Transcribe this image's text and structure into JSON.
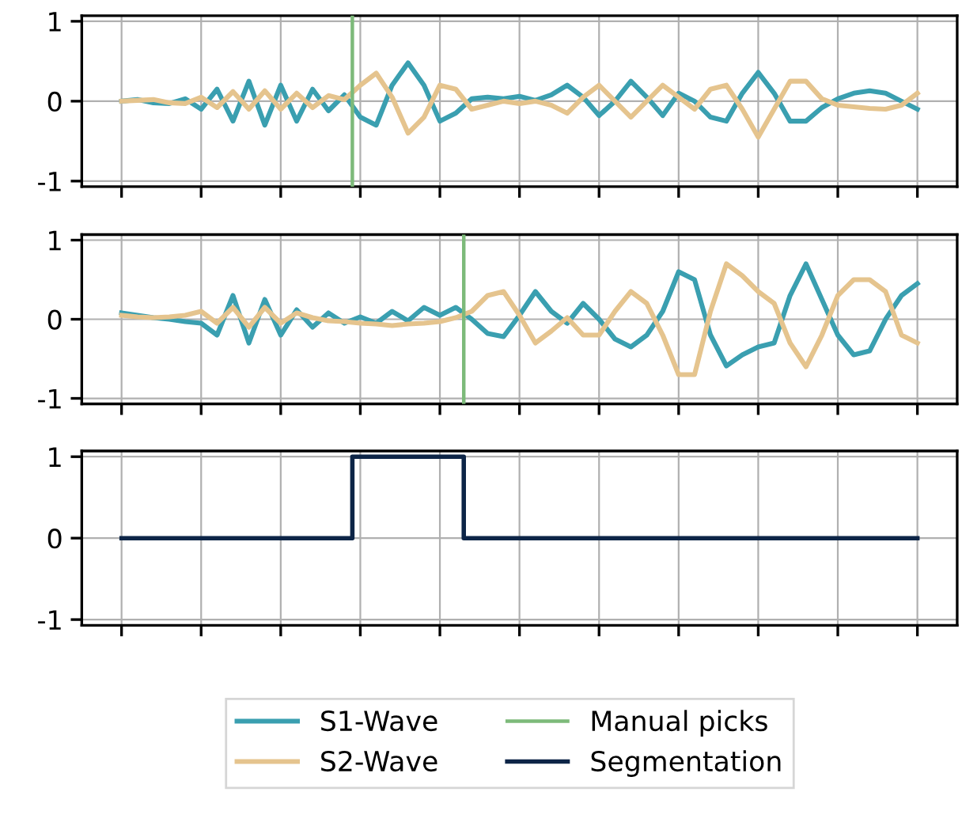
{
  "chart_data": [
    {
      "type": "line",
      "categories": [
        null,
        null,
        null,
        null,
        null,
        null,
        null,
        null,
        null,
        null,
        null,
        null,
        null,
        null,
        null,
        null,
        null,
        null,
        null,
        null,
        null,
        null,
        null,
        null,
        null,
        null,
        null,
        null,
        null,
        null,
        null,
        null,
        null,
        null,
        null,
        null,
        null,
        null,
        null,
        null,
        null,
        null,
        null,
        null,
        null,
        null,
        null,
        null,
        null,
        null,
        null
      ],
      "ylim": [
        -1.07,
        1.07
      ],
      "yticks": [
        -1,
        0,
        1
      ],
      "tick_labels": "y",
      "grid": true,
      "series": [
        {
          "name": "S1-Wave",
          "color": "#3a9fb0",
          "values": [
            0,
            0.02,
            -0.02,
            -0.03,
            0.03,
            -0.1,
            0.15,
            -0.25,
            0.25,
            -0.3,
            0.2,
            -0.25,
            0.15,
            -0.12,
            0.08,
            -0.2,
            -0.3,
            0.2,
            0.48,
            0.2,
            -0.25,
            -0.15,
            0.03,
            0.05,
            0.03,
            0.06,
            0.01,
            0.08,
            0.2,
            0.05,
            -0.18,
            0,
            0.25,
            0.05,
            -0.18,
            0.1,
            0,
            -0.2,
            -0.25,
            0.1,
            0.36,
            0.1,
            -0.25,
            -0.25,
            -0.08,
            0.03,
            0.1,
            0.13,
            0.1,
            0,
            -0.1
          ]
        },
        {
          "name": "S2-Wave",
          "color": "#e5c48e",
          "values": [
            0,
            0.01,
            0.02,
            -0.02,
            -0.03,
            0.05,
            -0.08,
            0.12,
            -0.1,
            0.13,
            -0.1,
            0.1,
            -0.08,
            0.07,
            0.02,
            0.2,
            0.35,
            0.05,
            -0.4,
            -0.2,
            0.2,
            0.15,
            -0.1,
            -0.05,
            0,
            -0.03,
            0,
            -0.05,
            -0.15,
            0.05,
            0.2,
            0,
            -0.2,
            0,
            0.2,
            0.05,
            -0.1,
            0.15,
            0.2,
            -0.1,
            -0.45,
            -0.1,
            0.25,
            0.25,
            0.03,
            -0.05,
            -0.07,
            -0.09,
            -0.1,
            -0.05,
            0.1
          ]
        }
      ],
      "legend": "bottom"
    },
    {
      "type": "line",
      "categories": [
        null,
        null,
        null,
        null,
        null,
        null,
        null,
        null,
        null,
        null,
        null,
        null,
        null,
        null,
        null,
        null,
        null,
        null,
        null,
        null,
        null,
        null,
        null,
        null,
        null,
        null,
        null,
        null,
        null,
        null,
        null,
        null,
        null,
        null,
        null,
        null,
        null,
        null,
        null,
        null,
        null,
        null,
        null,
        null,
        null,
        null,
        null,
        null,
        null,
        null,
        null
      ],
      "ylim": [
        -1.07,
        1.07
      ],
      "yticks": [
        -1,
        0,
        1
      ],
      "tick_labels": "y",
      "grid": true,
      "series": [
        {
          "name": "S1-Wave",
          "color": "#3a9fb0",
          "values": [
            0.08,
            0.05,
            0.02,
            0,
            -0.03,
            -0.05,
            -0.2,
            0.3,
            -0.3,
            0.25,
            -0.2,
            0.12,
            -0.1,
            0.08,
            -0.05,
            0.03,
            -0.05,
            0.1,
            -0.02,
            0.15,
            0.05,
            0.15,
            0,
            -0.18,
            -0.22,
            0.05,
            0.35,
            0.1,
            -0.05,
            0.2,
            0,
            -0.25,
            -0.35,
            -0.2,
            0.1,
            0.6,
            0.5,
            -0.2,
            -0.59,
            -0.45,
            -0.35,
            -0.3,
            0.3,
            0.7,
            0.25,
            -0.2,
            -0.45,
            -0.4,
            0,
            0.3,
            0.45
          ]
        },
        {
          "name": "S2-Wave",
          "color": "#e5c48e",
          "values": [
            0.05,
            0.03,
            0.02,
            0.03,
            0.05,
            0.1,
            -0.05,
            0.15,
            -0.1,
            0.15,
            -0.05,
            0.08,
            0.02,
            -0.02,
            -0.03,
            -0.05,
            -0.06,
            -0.08,
            -0.06,
            -0.05,
            -0.03,
            0.02,
            0.1,
            0.3,
            0.35,
            0.05,
            -0.3,
            -0.15,
            0.02,
            -0.2,
            -0.2,
            0.1,
            0.35,
            0.2,
            -0.2,
            -0.7,
            -0.7,
            0.1,
            0.7,
            0.55,
            0.35,
            0.2,
            -0.3,
            -0.6,
            -0.2,
            0.3,
            0.5,
            0.5,
            0.35,
            -0.2,
            -0.3
          ]
        }
      ],
      "legend": "bottom"
    },
    {
      "type": "step",
      "categories": [
        null,
        null,
        null,
        null,
        null,
        null,
        null,
        null,
        null,
        null,
        null,
        null,
        null,
        null,
        null,
        null,
        null,
        null,
        null,
        null,
        null,
        null,
        null,
        null,
        null,
        null,
        null,
        null,
        null,
        null,
        null,
        null,
        null,
        null,
        null,
        null,
        null,
        null,
        null,
        null,
        null,
        null,
        null,
        null,
        null,
        null,
        null,
        null,
        null,
        null,
        null
      ],
      "ylim": [
        -1.07,
        1.07
      ],
      "yticks": [
        -1,
        0,
        1
      ],
      "tick_labels": "y",
      "grid": true,
      "legend": "bottom",
      "series": [
        {
          "name": "Manual picks",
          "color": "#7dba7a",
          "type": "line",
          "values": [
            null,
            null,
            null,
            null,
            null,
            null,
            null,
            null,
            null,
            null,
            null,
            null,
            null,
            null,
            null,
            null,
            null,
            null,
            null,
            null,
            null,
            null,
            null,
            null,
            null,
            null,
            null,
            null,
            null,
            null,
            null,
            null,
            null,
            null,
            null,
            null,
            null,
            null,
            null,
            null,
            null,
            null,
            null,
            null,
            null,
            null,
            null,
            null,
            null,
            null,
            null
          ]
        },
        {
          "name": "Segmentation",
          "color": "#0d2547",
          "values": [
            0,
            0,
            0,
            0,
            0,
            0,
            0,
            0,
            0,
            0,
            0,
            0,
            0,
            0,
            0,
            1,
            1,
            1,
            1,
            1,
            1,
            1,
            0,
            0,
            0,
            0,
            0,
            0,
            0,
            0,
            0,
            0,
            0,
            0,
            0,
            0,
            0,
            0,
            0,
            0,
            0,
            0,
            0,
            0,
            0,
            0,
            0,
            0,
            0,
            0,
            0
          ]
        }
      ]
    }
  ]
}
